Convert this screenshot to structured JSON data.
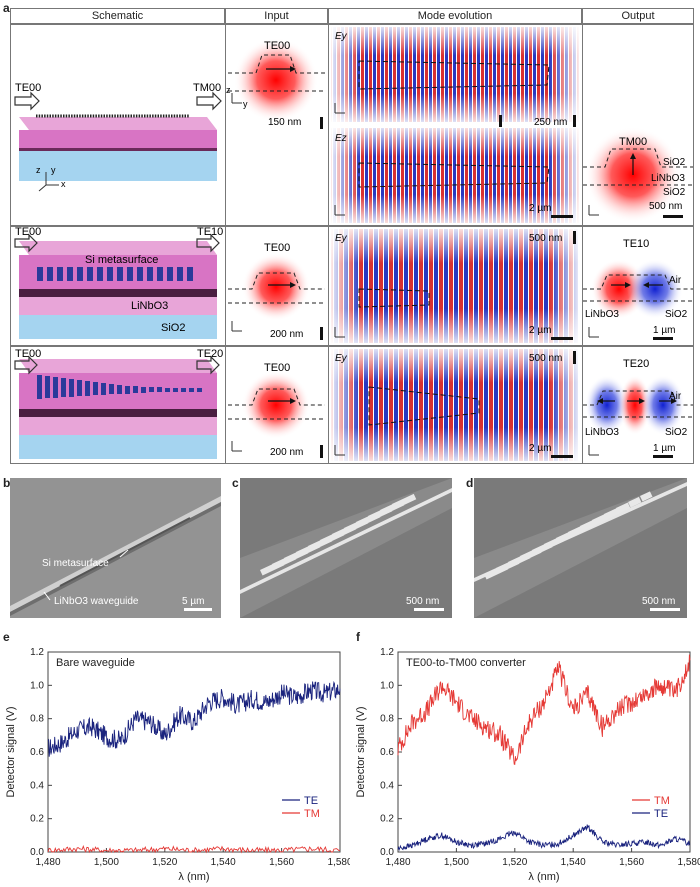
{
  "panel_labels": {
    "a": "a",
    "b": "b",
    "c": "c",
    "d": "d",
    "e": "e",
    "f": "f"
  },
  "headers": {
    "schematic": "Schematic",
    "input": "Input",
    "mode_evolution": "Mode evolution",
    "output": "Output"
  },
  "row1": {
    "te_in": "TE00",
    "tm_out": "TM00",
    "input_mode": "TE00",
    "ey": "Ey",
    "ez": "Ez",
    "scale_input": "150 nm",
    "scale_mode1": "250 nm",
    "scale_mode2": "2 µm",
    "output_mode": "TM00",
    "sio2_top": "SiO2",
    "linbo3": "LiNbO3",
    "sio2_bottom": "SiO2",
    "scale_out": "500 nm"
  },
  "row2": {
    "te_in": "TE00",
    "te_out": "TE10",
    "metasurface": "Si metasurface",
    "linbo3": "LiNbO3",
    "sio2": "SiO2",
    "input_mode": "TE00",
    "scale_input": "200 nm",
    "ey": "Ey",
    "scale_mode_v": "500 nm",
    "scale_mode_h": "2 µm",
    "output_mode": "TE10",
    "air": "Air",
    "out_linbo3": "LiNbO3",
    "out_sio2": "SiO2",
    "scale_out": "1 µm"
  },
  "row3": {
    "te_in": "TE00",
    "te_out": "TE20",
    "input_mode": "TE00",
    "scale_input": "200 nm",
    "ey": "Ey",
    "scale_mode_v": "500 nm",
    "scale_mode_h": "2 µm",
    "output_mode": "TE20",
    "air": "Air",
    "out_linbo3": "LiNbO3",
    "out_sio2": "SiO2",
    "scale_out": "1 µm"
  },
  "sem": {
    "b_meta": "Si metasurface",
    "b_wg": "LiNbO3 waveguide",
    "b_scale": "5 µm",
    "c_scale": "500 nm",
    "d_scale": "500 nm"
  },
  "chart_data": [
    {
      "type": "line",
      "panel": "e",
      "annotation": "Bare waveguide",
      "xlabel": "λ (nm)",
      "ylabel": "Detector signal (V)",
      "xlim": [
        1480,
        1580
      ],
      "ylim": [
        0,
        1.2
      ],
      "xticks": [
        "1,480",
        "1,500",
        "1,520",
        "1,540",
        "1,560",
        "1,580"
      ],
      "yticks": [
        "0.0",
        "0.2",
        "0.4",
        "0.6",
        "0.8",
        "1.0",
        "1.2"
      ],
      "series": [
        {
          "name": "TE",
          "color": "#1a237e",
          "x": [
            1480,
            1485,
            1490,
            1495,
            1500,
            1505,
            1510,
            1515,
            1520,
            1525,
            1530,
            1535,
            1540,
            1545,
            1550,
            1555,
            1560,
            1565,
            1570,
            1575,
            1580
          ],
          "values": [
            0.62,
            0.66,
            0.73,
            0.75,
            0.69,
            0.67,
            0.8,
            0.78,
            0.7,
            0.82,
            0.78,
            0.9,
            0.93,
            0.88,
            0.92,
            0.9,
            0.95,
            0.93,
            0.97,
            0.95,
            0.98
          ]
        },
        {
          "name": "TM",
          "color": "#e53935",
          "x": [
            1480,
            1490,
            1500,
            1510,
            1520,
            1530,
            1540,
            1550,
            1560,
            1570,
            1580
          ],
          "values": [
            0.01,
            0.02,
            0.01,
            0.01,
            0.02,
            0.01,
            0.02,
            0.01,
            0.01,
            0.02,
            0.01
          ]
        }
      ],
      "legend": "right"
    },
    {
      "type": "line",
      "panel": "f",
      "annotation": "TE00-to-TM00 converter",
      "xlabel": "λ (nm)",
      "ylabel": "Detector signal (V)",
      "xlim": [
        1480,
        1580
      ],
      "ylim": [
        0,
        1.2
      ],
      "xticks": [
        "1,480",
        "1,500",
        "1,520",
        "1,540",
        "1,560",
        "1,580"
      ],
      "yticks": [
        "0.0",
        "0.2",
        "0.4",
        "0.6",
        "0.8",
        "1.0",
        "1.2"
      ],
      "series": [
        {
          "name": "TM",
          "color": "#e53935",
          "x": [
            1480,
            1485,
            1490,
            1495,
            1500,
            1505,
            1510,
            1515,
            1520,
            1525,
            1530,
            1535,
            1540,
            1545,
            1550,
            1555,
            1560,
            1565,
            1570,
            1575,
            1580
          ],
          "values": [
            0.62,
            0.78,
            0.85,
            1.0,
            0.9,
            0.8,
            0.75,
            0.7,
            0.55,
            0.78,
            0.9,
            1.1,
            0.85,
            0.95,
            0.75,
            0.85,
            0.9,
            0.95,
            1.0,
            0.95,
            1.15
          ]
        },
        {
          "name": "TE",
          "color": "#1a237e",
          "x": [
            1480,
            1485,
            1490,
            1495,
            1500,
            1505,
            1510,
            1515,
            1520,
            1525,
            1530,
            1535,
            1540,
            1545,
            1550,
            1555,
            1560,
            1565,
            1570,
            1575,
            1580
          ],
          "values": [
            0.02,
            0.04,
            0.08,
            0.1,
            0.06,
            0.04,
            0.05,
            0.08,
            0.12,
            0.06,
            0.04,
            0.05,
            0.1,
            0.15,
            0.06,
            0.04,
            0.05,
            0.06,
            0.04,
            0.08,
            0.05
          ]
        }
      ],
      "legend": "right"
    }
  ]
}
